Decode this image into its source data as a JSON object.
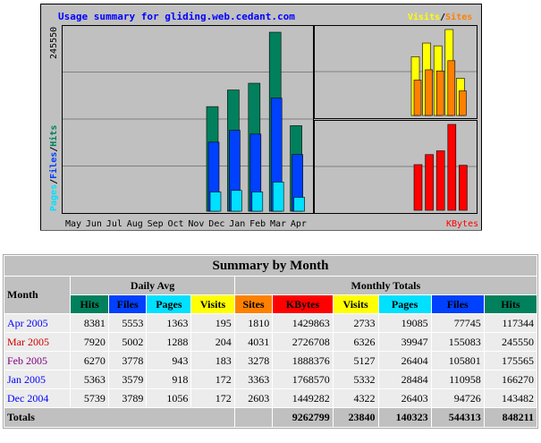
{
  "chart_data": {
    "type": "bar",
    "title": "Usage summary for gliding.web.cedant.com",
    "categories": [
      "May",
      "Jun",
      "Jul",
      "Aug",
      "Sep",
      "Oct",
      "Nov",
      "Dec",
      "Jan",
      "Feb",
      "Mar",
      "Apr"
    ],
    "left_panel": {
      "ylabel_parts": [
        "Pages",
        "Files",
        "Hits"
      ],
      "max_label": "245550",
      "ylim": [
        0,
        245550
      ],
      "series": [
        {
          "name": "Hits",
          "values": [
            0,
            0,
            0,
            0,
            0,
            0,
            0,
            143482,
            166270,
            175565,
            245550,
            117344
          ]
        },
        {
          "name": "Files",
          "values": [
            0,
            0,
            0,
            0,
            0,
            0,
            0,
            94726,
            110958,
            105801,
            155083,
            77745
          ]
        },
        {
          "name": "Pages",
          "values": [
            0,
            0,
            0,
            0,
            0,
            0,
            0,
            26403,
            28484,
            26404,
            39947,
            19085
          ]
        }
      ]
    },
    "top_right_panel": {
      "legend_parts": [
        "Visits",
        "Sites"
      ],
      "max_label": "6326",
      "ylim": [
        0,
        6326
      ],
      "series": [
        {
          "name": "Visits",
          "values": [
            4322,
            5332,
            5127,
            6326,
            2733
          ]
        },
        {
          "name": "Sites",
          "values": [
            2603,
            3363,
            3278,
            4031,
            1810
          ]
        }
      ]
    },
    "bottom_right_panel": {
      "legend": "KBytes",
      "max_label": "2726708",
      "ylim": [
        0,
        2726708
      ],
      "series": [
        {
          "name": "KBytes",
          "values": [
            1449282,
            1768570,
            1888376,
            2726708,
            1429863
          ]
        }
      ]
    }
  },
  "colors": {
    "hits": "#00805c",
    "files": "#0040ff",
    "pages": "#00e0ff",
    "visits": "#ffff00",
    "sites": "#ff8000",
    "kbytes": "#ff0000",
    "plot_bg": "#c0c0c0",
    "title_color": "#0000ff"
  },
  "table": {
    "title": "Summary by Month",
    "month_header": "Month",
    "daily_avg_header": "Daily Avg",
    "monthly_totals_header": "Monthly Totals",
    "daily_cols": [
      "Hits",
      "Files",
      "Pages",
      "Visits"
    ],
    "monthly_cols": [
      "Sites",
      "KBytes",
      "Visits",
      "Pages",
      "Files",
      "Hits"
    ],
    "rows": [
      {
        "month": "Apr 2005",
        "link_color": "#0000ff",
        "daily": [
          "8381",
          "5553",
          "1363",
          "195"
        ],
        "monthly": [
          "1810",
          "1429863",
          "2733",
          "19085",
          "77745",
          "117344"
        ]
      },
      {
        "month": "Mar 2005",
        "link_color": "#cc0000",
        "daily": [
          "7920",
          "5002",
          "1288",
          "204"
        ],
        "monthly": [
          "4031",
          "2726708",
          "6326",
          "39947",
          "155083",
          "245550"
        ]
      },
      {
        "month": "Feb 2005",
        "link_color": "#800080",
        "daily": [
          "6270",
          "3778",
          "943",
          "183"
        ],
        "monthly": [
          "3278",
          "1888376",
          "5127",
          "26404",
          "105801",
          "175565"
        ]
      },
      {
        "month": "Jan 2005",
        "link_color": "#0000ff",
        "daily": [
          "5363",
          "3579",
          "918",
          "172"
        ],
        "monthly": [
          "3363",
          "1768570",
          "5332",
          "28484",
          "110958",
          "166270"
        ]
      },
      {
        "month": "Dec 2004",
        "link_color": "#0000ff",
        "daily": [
          "5739",
          "3789",
          "1056",
          "172"
        ],
        "monthly": [
          "2603",
          "1449282",
          "4322",
          "26403",
          "94726",
          "143482"
        ]
      }
    ],
    "totals_label": "Totals",
    "totals": [
      "9262799",
      "23840",
      "140323",
      "544313",
      "848211"
    ]
  }
}
